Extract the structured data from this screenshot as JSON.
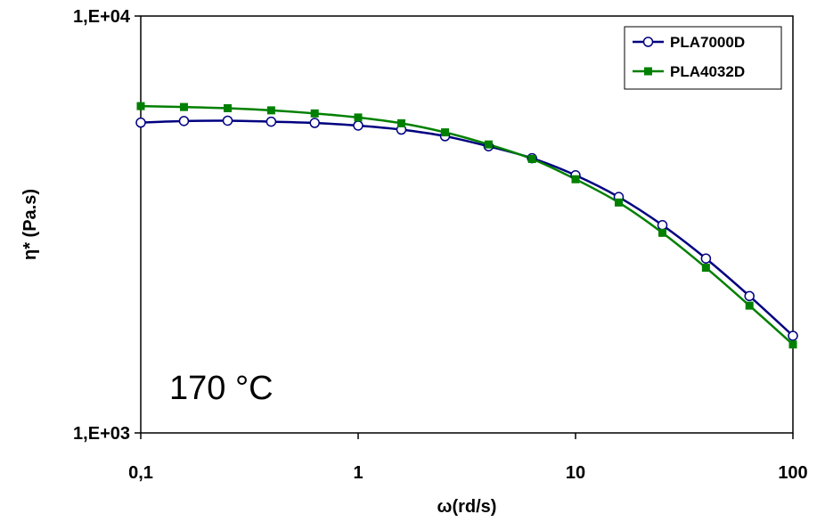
{
  "chart_data": {
    "type": "line",
    "xlabel": "ω(rd/s)",
    "ylabel": "η* (Pa.s)",
    "xscale": "log",
    "yscale": "log",
    "xlim": [
      0.1,
      100
    ],
    "ylim": [
      1000,
      10000
    ],
    "xticks": [
      {
        "value": 0.1,
        "label": "0,1"
      },
      {
        "value": 1,
        "label": "1"
      },
      {
        "value": 10,
        "label": "10"
      },
      {
        "value": 100,
        "label": "100"
      }
    ],
    "yticks": [
      {
        "value": 1000,
        "label": "1,E+03"
      },
      {
        "value": 10000,
        "label": "1,E+04"
      }
    ],
    "legend_position": "top-right",
    "annotation": "170 °C",
    "series": [
      {
        "name": "PLA7000D",
        "color": "#000080",
        "marker": "open-circle",
        "x": [
          0.1,
          0.158,
          0.251,
          0.398,
          0.631,
          1,
          1.58,
          2.51,
          3.98,
          6.31,
          10,
          15.8,
          25.1,
          39.8,
          63.1,
          100
        ],
        "y": [
          5550,
          5600,
          5610,
          5580,
          5540,
          5460,
          5340,
          5150,
          4870,
          4560,
          4150,
          3680,
          3150,
          2620,
          2130,
          1710
        ]
      },
      {
        "name": "PLA4032D",
        "color": "#008000",
        "marker": "filled-square",
        "x": [
          0.1,
          0.158,
          0.251,
          0.398,
          0.631,
          1,
          1.58,
          2.51,
          3.98,
          6.31,
          10,
          15.8,
          25.1,
          39.8,
          63.1,
          100
        ],
        "y": [
          6080,
          6050,
          6010,
          5940,
          5840,
          5710,
          5530,
          5260,
          4920,
          4540,
          4060,
          3570,
          3020,
          2490,
          2020,
          1630
        ]
      }
    ]
  }
}
